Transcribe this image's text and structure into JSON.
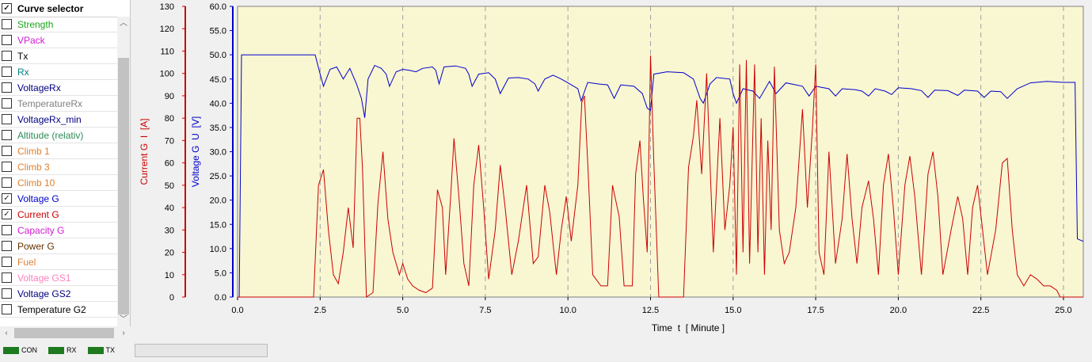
{
  "curve_selector": {
    "header": "Curve selector",
    "header_checked": true,
    "items": [
      {
        "label": "Strength",
        "color": "#1aa51a",
        "checked": false
      },
      {
        "label": "VPack",
        "color": "#d41ad4",
        "checked": false
      },
      {
        "label": "Tx",
        "color": "#000000",
        "checked": false
      },
      {
        "label": "Rx",
        "color": "#008080",
        "checked": false
      },
      {
        "label": "VoltageRx",
        "color": "#000080",
        "checked": false
      },
      {
        "label": "TemperatureRx",
        "color": "#808080",
        "checked": false
      },
      {
        "label": "VoltageRx_min",
        "color": "#000080",
        "checked": false
      },
      {
        "label": "Altitude (relativ)",
        "color": "#2e8b57",
        "checked": false
      },
      {
        "label": "Climb 1",
        "color": "#e08030",
        "checked": false
      },
      {
        "label": "Climb 3",
        "color": "#e08030",
        "checked": false
      },
      {
        "label": "Climb 10",
        "color": "#e08030",
        "checked": false
      },
      {
        "label": "Voltage G",
        "color": "#0000cc",
        "checked": true
      },
      {
        "label": "Current G",
        "color": "#cc0000",
        "checked": true
      },
      {
        "label": "Capacity G",
        "color": "#d41ad4",
        "checked": false
      },
      {
        "label": "Power G",
        "color": "#663300",
        "checked": false
      },
      {
        "label": "Fuel",
        "color": "#e0803a",
        "checked": false
      },
      {
        "label": "Voltage GS1",
        "color": "#ff80c0",
        "checked": false
      },
      {
        "label": "Voltage GS2",
        "color": "#000080",
        "checked": false
      },
      {
        "label": "Temperature G2",
        "color": "#000000",
        "checked": false
      }
    ]
  },
  "status_bar": {
    "indicators": [
      {
        "label": "CON",
        "color": "#1e7a1e"
      },
      {
        "label": "RX",
        "color": "#1e7a1e"
      },
      {
        "label": "TX",
        "color": "#1e7a1e"
      }
    ]
  },
  "chart_data": {
    "type": "line",
    "background": "#f9f6d2",
    "grid": "vertical dashed",
    "xlabel": "Time  t  [ Minute ]",
    "xlim": [
      0,
      25.6
    ],
    "x_ticks": [
      "0.0",
      "2.5",
      "5.0",
      "7.5",
      "10.0",
      "12.5",
      "15.0",
      "17.5",
      "20.0",
      "22.5",
      "25.0"
    ],
    "y_axes": [
      {
        "label": "Current G  I  [A]",
        "color": "#cc0000",
        "lim": [
          0,
          130
        ],
        "ticks": [
          "0",
          "10",
          "20",
          "30",
          "40",
          "50",
          "60",
          "70",
          "80",
          "90",
          "100",
          "110",
          "120",
          "130"
        ]
      },
      {
        "label": "Voltage G  U  [V]",
        "color": "#0000cc",
        "lim": [
          0,
          60
        ],
        "ticks": [
          "0.0",
          "5.0",
          "10.0",
          "15.0",
          "20.0",
          "25.0",
          "30.0",
          "35.0",
          "40.0",
          "45.0",
          "50.0",
          "55.0",
          "60.0"
        ]
      }
    ],
    "series": [
      {
        "name": "Voltage G",
        "axis": 1,
        "color": "#0000cc",
        "points": [
          [
            0,
            0
          ],
          [
            0.05,
            0
          ],
          [
            0.12,
            50
          ],
          [
            2.35,
            50
          ],
          [
            2.5,
            46
          ],
          [
            2.6,
            43.5
          ],
          [
            2.8,
            47
          ],
          [
            3.0,
            47.5
          ],
          [
            3.2,
            45
          ],
          [
            3.4,
            47.2
          ],
          [
            3.6,
            44
          ],
          [
            3.75,
            41
          ],
          [
            3.85,
            37
          ],
          [
            3.95,
            45
          ],
          [
            4.15,
            47.8
          ],
          [
            4.35,
            47.2
          ],
          [
            4.5,
            46
          ],
          [
            4.6,
            43.5
          ],
          [
            4.8,
            46.5
          ],
          [
            5.0,
            47
          ],
          [
            5.2,
            46.8
          ],
          [
            5.4,
            46.5
          ],
          [
            5.6,
            47.2
          ],
          [
            5.9,
            47.5
          ],
          [
            6.0,
            46.8
          ],
          [
            6.1,
            44
          ],
          [
            6.25,
            47.5
          ],
          [
            6.6,
            47.7
          ],
          [
            6.9,
            47.2
          ],
          [
            7.0,
            46
          ],
          [
            7.1,
            43.5
          ],
          [
            7.3,
            46
          ],
          [
            7.6,
            46.3
          ],
          [
            7.8,
            45
          ],
          [
            7.95,
            42
          ],
          [
            8.2,
            45.2
          ],
          [
            8.5,
            45.3
          ],
          [
            8.8,
            45
          ],
          [
            9.0,
            44
          ],
          [
            9.1,
            42.5
          ],
          [
            9.3,
            45
          ],
          [
            9.55,
            45.8
          ],
          [
            9.8,
            45
          ],
          [
            10.0,
            44.2
          ],
          [
            10.1,
            43.8
          ],
          [
            10.3,
            43
          ],
          [
            10.4,
            40.5
          ],
          [
            10.6,
            44.3
          ],
          [
            10.9,
            44
          ],
          [
            11.2,
            43.8
          ],
          [
            11.4,
            41
          ],
          [
            11.6,
            43.8
          ],
          [
            12.0,
            43.5
          ],
          [
            12.25,
            42
          ],
          [
            12.4,
            39
          ],
          [
            12.5,
            38.5
          ],
          [
            12.6,
            46
          ],
          [
            13.0,
            46.5
          ],
          [
            13.5,
            46.3
          ],
          [
            13.8,
            45
          ],
          [
            13.9,
            43
          ],
          [
            14.0,
            41
          ],
          [
            14.1,
            40
          ],
          [
            14.3,
            44
          ],
          [
            14.5,
            45.3
          ],
          [
            14.9,
            45
          ],
          [
            15.0,
            42
          ],
          [
            15.1,
            40
          ],
          [
            15.3,
            43
          ],
          [
            15.6,
            42.5
          ],
          [
            15.8,
            41
          ],
          [
            16.1,
            44.5
          ],
          [
            16.3,
            42
          ],
          [
            16.6,
            44.2
          ],
          [
            16.9,
            43.8
          ],
          [
            17.1,
            43.5
          ],
          [
            17.3,
            41.5
          ],
          [
            17.5,
            43.5
          ],
          [
            17.9,
            43
          ],
          [
            18.1,
            41.5
          ],
          [
            18.3,
            43
          ],
          [
            18.7,
            42.8
          ],
          [
            18.9,
            42.5
          ],
          [
            19.1,
            41.5
          ],
          [
            19.3,
            43
          ],
          [
            19.6,
            42.5
          ],
          [
            19.8,
            41.8
          ],
          [
            20.0,
            43.2
          ],
          [
            20.4,
            43
          ],
          [
            20.7,
            42.6
          ],
          [
            20.9,
            41.2
          ],
          [
            21.1,
            42.7
          ],
          [
            21.5,
            42.6
          ],
          [
            21.8,
            41.6
          ],
          [
            22.0,
            42.7
          ],
          [
            22.4,
            42.5
          ],
          [
            22.6,
            41.2
          ],
          [
            22.8,
            42.5
          ],
          [
            23.1,
            42.4
          ],
          [
            23.3,
            41
          ],
          [
            23.6,
            43
          ],
          [
            24.0,
            44.2
          ],
          [
            24.5,
            44.5
          ],
          [
            25.0,
            44.3
          ],
          [
            25.35,
            44.3
          ],
          [
            25.42,
            12
          ],
          [
            25.6,
            11.5
          ]
        ]
      },
      {
        "name": "Current G",
        "axis": 0,
        "color": "#cc0000",
        "points": [
          [
            0,
            0
          ],
          [
            2.3,
            0
          ],
          [
            2.45,
            50
          ],
          [
            2.6,
            57
          ],
          [
            2.75,
            30
          ],
          [
            2.9,
            10
          ],
          [
            3.05,
            6
          ],
          [
            3.2,
            20
          ],
          [
            3.35,
            40
          ],
          [
            3.5,
            22
          ],
          [
            3.62,
            80
          ],
          [
            3.7,
            80
          ],
          [
            3.78,
            58
          ],
          [
            3.9,
            0
          ],
          [
            4.1,
            2
          ],
          [
            4.25,
            42
          ],
          [
            4.4,
            65
          ],
          [
            4.55,
            35
          ],
          [
            4.7,
            20
          ],
          [
            4.9,
            10
          ],
          [
            5.0,
            15
          ],
          [
            5.15,
            8
          ],
          [
            5.3,
            5
          ],
          [
            5.5,
            3
          ],
          [
            5.7,
            2
          ],
          [
            5.9,
            4
          ],
          [
            6.05,
            48
          ],
          [
            6.2,
            40
          ],
          [
            6.3,
            10
          ],
          [
            6.45,
            45
          ],
          [
            6.55,
            71
          ],
          [
            6.7,
            45
          ],
          [
            6.85,
            15
          ],
          [
            7.0,
            5
          ],
          [
            7.15,
            50
          ],
          [
            7.3,
            68
          ],
          [
            7.45,
            40
          ],
          [
            7.6,
            8
          ],
          [
            7.8,
            30
          ],
          [
            7.95,
            59
          ],
          [
            8.1,
            40
          ],
          [
            8.3,
            10
          ],
          [
            8.5,
            25
          ],
          [
            8.75,
            50
          ],
          [
            8.95,
            15
          ],
          [
            9.1,
            18
          ],
          [
            9.3,
            50
          ],
          [
            9.45,
            38
          ],
          [
            9.65,
            10
          ],
          [
            9.8,
            30
          ],
          [
            9.95,
            45
          ],
          [
            10.1,
            25
          ],
          [
            10.3,
            50
          ],
          [
            10.42,
            87
          ],
          [
            10.5,
            90
          ],
          [
            10.6,
            60
          ],
          [
            10.75,
            10
          ],
          [
            11.0,
            5
          ],
          [
            11.2,
            5
          ],
          [
            11.35,
            50
          ],
          [
            11.55,
            36
          ],
          [
            11.7,
            5
          ],
          [
            11.95,
            5
          ],
          [
            12.05,
            55
          ],
          [
            12.18,
            70
          ],
          [
            12.28,
            45
          ],
          [
            12.4,
            20
          ],
          [
            12.5,
            108
          ],
          [
            12.6,
            60
          ],
          [
            12.75,
            0
          ],
          [
            13.5,
            0
          ],
          [
            13.65,
            58
          ],
          [
            13.8,
            72
          ],
          [
            13.9,
            88
          ],
          [
            14.05,
            55
          ],
          [
            14.2,
            100
          ],
          [
            14.4,
            20
          ],
          [
            14.6,
            80
          ],
          [
            14.75,
            30
          ],
          [
            14.9,
            50
          ],
          [
            15.0,
            76
          ],
          [
            15.1,
            10
          ],
          [
            15.2,
            104
          ],
          [
            15.3,
            20
          ],
          [
            15.4,
            106
          ],
          [
            15.5,
            15
          ],
          [
            15.65,
            104
          ],
          [
            15.75,
            20
          ],
          [
            15.85,
            80
          ],
          [
            15.95,
            10
          ],
          [
            16.05,
            70
          ],
          [
            16.15,
            30
          ],
          [
            16.25,
            103
          ],
          [
            16.4,
            30
          ],
          [
            16.55,
            15
          ],
          [
            16.7,
            20
          ],
          [
            16.9,
            40
          ],
          [
            17.1,
            84
          ],
          [
            17.25,
            40
          ],
          [
            17.4,
            75
          ],
          [
            17.5,
            104
          ],
          [
            17.6,
            20
          ],
          [
            17.75,
            10
          ],
          [
            17.9,
            65
          ],
          [
            18.1,
            15
          ],
          [
            18.3,
            35
          ],
          [
            18.45,
            64
          ],
          [
            18.6,
            35
          ],
          [
            18.75,
            15
          ],
          [
            18.9,
            40
          ],
          [
            19.1,
            52
          ],
          [
            19.25,
            35
          ],
          [
            19.4,
            10
          ],
          [
            19.55,
            50
          ],
          [
            19.7,
            64
          ],
          [
            19.85,
            40
          ],
          [
            20.0,
            10
          ],
          [
            20.2,
            50
          ],
          [
            20.35,
            63
          ],
          [
            20.5,
            45
          ],
          [
            20.7,
            10
          ],
          [
            20.9,
            55
          ],
          [
            21.05,
            65
          ],
          [
            21.2,
            45
          ],
          [
            21.35,
            10
          ],
          [
            21.6,
            30
          ],
          [
            21.8,
            45
          ],
          [
            21.95,
            35
          ],
          [
            22.1,
            10
          ],
          [
            22.25,
            40
          ],
          [
            22.4,
            50
          ],
          [
            22.55,
            30
          ],
          [
            22.7,
            10
          ],
          [
            22.95,
            30
          ],
          [
            23.15,
            60
          ],
          [
            23.3,
            62
          ],
          [
            23.45,
            30
          ],
          [
            23.6,
            10
          ],
          [
            23.8,
            5
          ],
          [
            24.0,
            10
          ],
          [
            24.2,
            8
          ],
          [
            24.4,
            5
          ],
          [
            24.6,
            5
          ],
          [
            24.8,
            3
          ],
          [
            24.9,
            0
          ],
          [
            25.6,
            0
          ]
        ]
      }
    ]
  }
}
